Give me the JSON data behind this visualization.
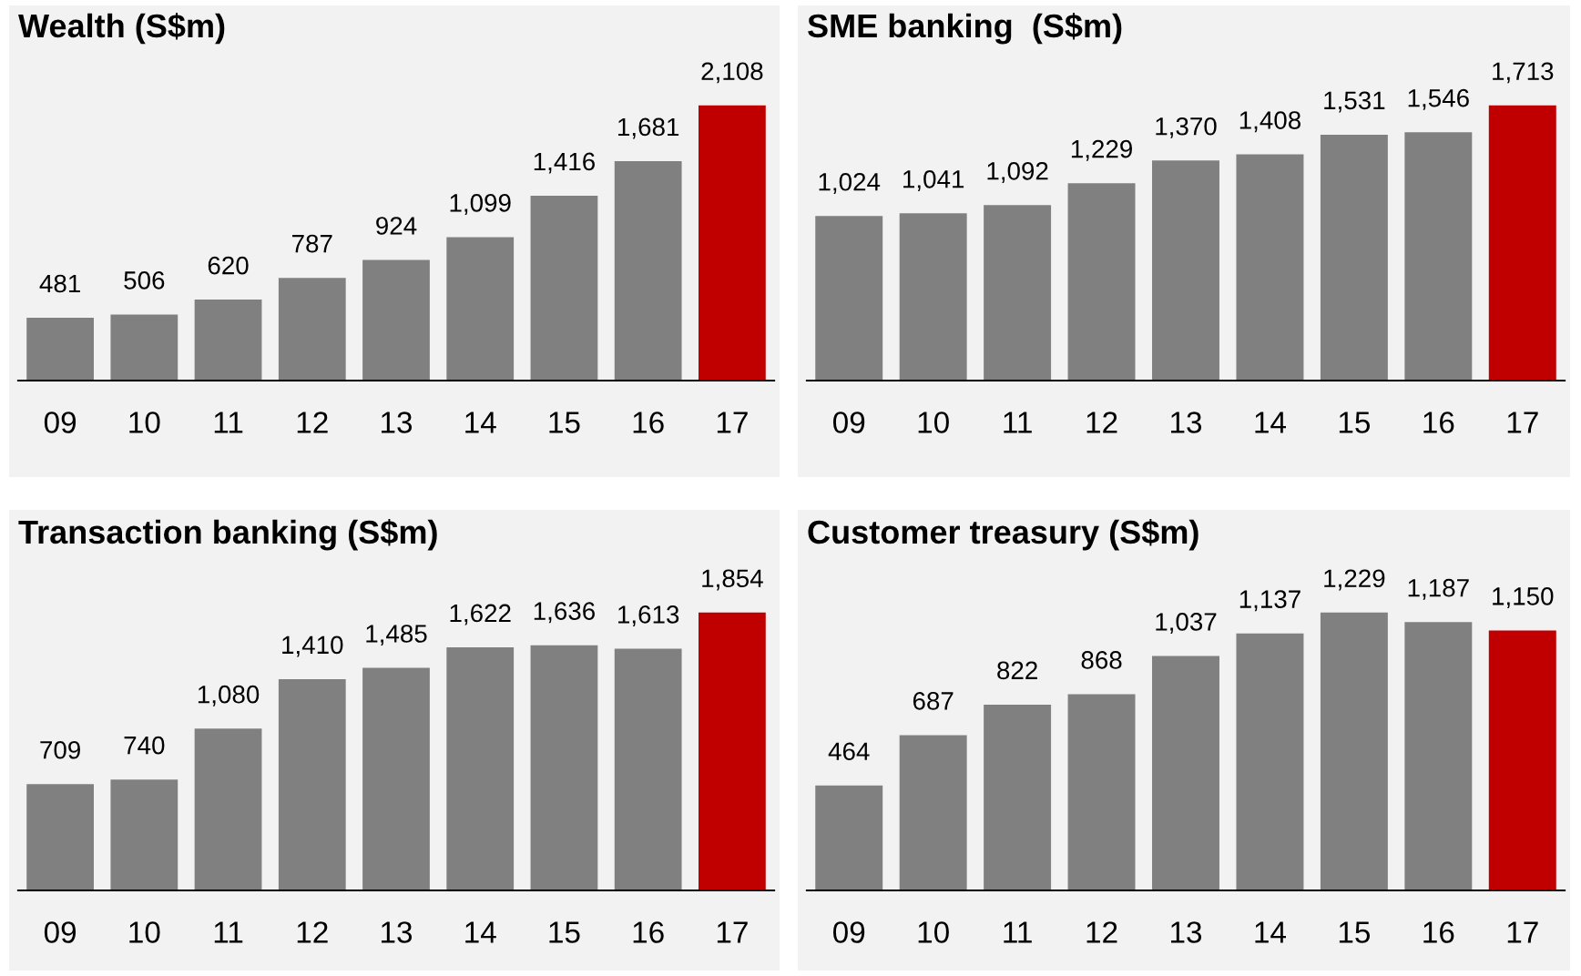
{
  "chart_data": [
    {
      "type": "bar",
      "title": "Wealth (S$m)",
      "categories": [
        "09",
        "10",
        "11",
        "12",
        "13",
        "14",
        "15",
        "16",
        "17"
      ],
      "values": [
        481,
        506,
        620,
        787,
        924,
        1099,
        1416,
        1681,
        2108
      ],
      "colors": [
        "#808080",
        "#808080",
        "#808080",
        "#808080",
        "#808080",
        "#808080",
        "#808080",
        "#808080",
        "#c00000"
      ],
      "value_labels": [
        "481",
        "506",
        "620",
        "787",
        "924",
        "1,099",
        "1,416",
        "1,681",
        "2,108"
      ]
    },
    {
      "type": "bar",
      "title": "SME banking  (S$m)",
      "categories": [
        "09",
        "10",
        "11",
        "12",
        "13",
        "14",
        "15",
        "16",
        "17"
      ],
      "values": [
        1024,
        1041,
        1092,
        1229,
        1370,
        1408,
        1531,
        1546,
        1713
      ],
      "colors": [
        "#808080",
        "#808080",
        "#808080",
        "#808080",
        "#808080",
        "#808080",
        "#808080",
        "#808080",
        "#c00000"
      ],
      "value_labels": [
        "1,024",
        "1,041",
        "1,092",
        "1,229",
        "1,370",
        "1,408",
        "1,531",
        "1,546",
        "1,713"
      ]
    },
    {
      "type": "bar",
      "title": "Transaction banking (S$m)",
      "categories": [
        "09",
        "10",
        "11",
        "12",
        "13",
        "14",
        "15",
        "16",
        "17"
      ],
      "values": [
        709,
        740,
        1080,
        1410,
        1485,
        1622,
        1636,
        1613,
        1854
      ],
      "colors": [
        "#808080",
        "#808080",
        "#808080",
        "#808080",
        "#808080",
        "#808080",
        "#808080",
        "#808080",
        "#c00000"
      ],
      "value_labels": [
        "709",
        "740",
        "1,080",
        "1,410",
        "1,485",
        "1,622",
        "1,636",
        "1,613",
        "1,854"
      ]
    },
    {
      "type": "bar",
      "title": "Customer treasury (S$m)",
      "categories": [
        "09",
        "10",
        "11",
        "12",
        "13",
        "14",
        "15",
        "16",
        "17"
      ],
      "values": [
        464,
        687,
        822,
        868,
        1037,
        1137,
        1229,
        1187,
        1150
      ],
      "colors": [
        "#808080",
        "#808080",
        "#808080",
        "#808080",
        "#808080",
        "#808080",
        "#808080",
        "#808080",
        "#c00000"
      ],
      "value_labels": [
        "464",
        "687",
        "822",
        "868",
        "1,037",
        "1,137",
        "1,229",
        "1,187",
        "1,150"
      ]
    }
  ]
}
